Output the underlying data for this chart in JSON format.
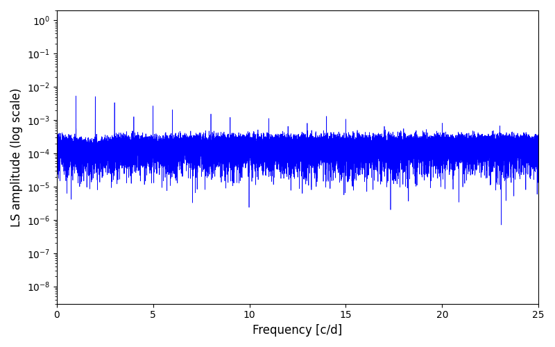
{
  "xlabel": "Frequency [c/d]",
  "ylabel": "LS amplitude (log scale)",
  "line_color": "#0000FF",
  "xlim": [
    0,
    25
  ],
  "ylim": [
    3e-09,
    2.0
  ],
  "figsize": [
    8.0,
    5.0
  ],
  "dpi": 100,
  "xticks": [
    0,
    5,
    10,
    15,
    20,
    25
  ],
  "linewidth": 0.5
}
